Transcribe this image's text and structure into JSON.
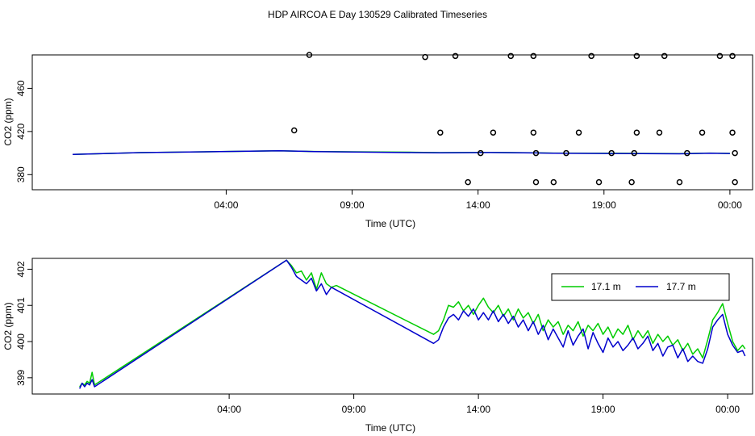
{
  "title": "HDP AIRCOA E  Day 130529  Calibrated Timeseries",
  "chart_data": [
    {
      "type": "line",
      "xlabel": "Time (UTC)",
      "ylabel": "CO2 (ppm)",
      "xticks": [
        "04:00",
        "09:00",
        "14:00",
        "19:00",
        "00:00"
      ],
      "yticks": [
        380,
        420,
        460
      ],
      "xlim": [
        -3.7,
        24.9
      ],
      "ylim": [
        366,
        491
      ],
      "series": [
        {
          "color": "#00cc00",
          "points": [
            [
              -2.1,
              398.8
            ],
            [
              0.6,
              400.4
            ],
            [
              6.1,
              402.1
            ],
            [
              7.5,
              401.5
            ],
            [
              9.0,
              401.2
            ],
            [
              11.5,
              400.7
            ],
            [
              12.5,
              400.4
            ],
            [
              14.5,
              400.6
            ],
            [
              16.2,
              400.2
            ],
            [
              17.0,
              400.0
            ],
            [
              18.5,
              399.8
            ],
            [
              19.5,
              399.8
            ],
            [
              20.5,
              399.7
            ],
            [
              22.0,
              399.5
            ],
            [
              23.2,
              400.0
            ],
            [
              24.0,
              399.7
            ]
          ]
        },
        {
          "color": "#0000cc",
          "points": [
            [
              -2.1,
              398.8
            ],
            [
              0.6,
              400.4
            ],
            [
              6.1,
              402.1
            ],
            [
              7.5,
              401.4
            ],
            [
              9.0,
              401.0
            ],
            [
              11.5,
              400.4
            ],
            [
              12.5,
              400.3
            ],
            [
              14.5,
              400.5
            ],
            [
              16.2,
              400.1
            ],
            [
              17.0,
              399.9
            ],
            [
              18.5,
              399.7
            ],
            [
              19.5,
              399.6
            ],
            [
              20.5,
              399.5
            ],
            [
              22.0,
              399.3
            ],
            [
              23.2,
              399.9
            ],
            [
              24.0,
              399.6
            ]
          ]
        }
      ],
      "markers": [
        [
          7.3,
          491
        ],
        [
          6.7,
          421
        ],
        [
          11.9,
          489
        ],
        [
          13.1,
          490
        ],
        [
          15.3,
          490
        ],
        [
          16.2,
          490
        ],
        [
          18.5,
          490
        ],
        [
          20.3,
          490
        ],
        [
          21.4,
          490
        ],
        [
          23.6,
          490
        ],
        [
          24.1,
          490
        ],
        [
          12.5,
          419
        ],
        [
          14.6,
          419
        ],
        [
          16.2,
          419
        ],
        [
          18.0,
          419
        ],
        [
          20.3,
          419
        ],
        [
          21.2,
          419
        ],
        [
          22.9,
          419
        ],
        [
          24.1,
          419
        ],
        [
          14.1,
          400
        ],
        [
          16.3,
          400
        ],
        [
          17.5,
          400
        ],
        [
          19.3,
          400
        ],
        [
          20.2,
          400
        ],
        [
          22.3,
          400
        ],
        [
          24.2,
          400
        ],
        [
          13.6,
          373
        ],
        [
          16.3,
          373
        ],
        [
          17.0,
          373
        ],
        [
          18.8,
          373
        ],
        [
          20.1,
          373
        ],
        [
          22.0,
          373
        ],
        [
          24.2,
          373
        ]
      ]
    },
    {
      "type": "line",
      "xlabel": "Time (UTC)",
      "ylabel": "CO2 (ppm)",
      "xticks": [
        "04:00",
        "09:00",
        "14:00",
        "19:00",
        "00:00"
      ],
      "yticks": [
        399,
        400,
        401,
        402
      ],
      "xlim": [
        -3.9,
        25.0
      ],
      "ylim": [
        398.55,
        402.3
      ],
      "legend": {
        "position": "top-right",
        "entries": [
          "17.1 m",
          "17.7 m"
        ]
      },
      "series": [
        {
          "name": "17.1 m",
          "color": "#00cc00",
          "points": [
            [
              -2.0,
              398.75
            ],
            [
              -1.9,
              398.85
            ],
            [
              -1.8,
              398.8
            ],
            [
              -1.7,
              398.9
            ],
            [
              -1.6,
              398.85
            ],
            [
              -1.5,
              399.15
            ],
            [
              -1.4,
              398.8
            ],
            [
              6.3,
              402.25
            ],
            [
              6.5,
              402.1
            ],
            [
              6.7,
              401.9
            ],
            [
              6.9,
              401.95
            ],
            [
              7.1,
              401.7
            ],
            [
              7.3,
              401.9
            ],
            [
              7.5,
              401.45
            ],
            [
              7.7,
              401.9
            ],
            [
              7.9,
              401.6
            ],
            [
              8.1,
              401.5
            ],
            [
              8.3,
              401.55
            ],
            [
              12.2,
              400.2
            ],
            [
              12.4,
              400.3
            ],
            [
              12.6,
              400.6
            ],
            [
              12.8,
              401.0
            ],
            [
              13.0,
              400.95
            ],
            [
              13.2,
              401.1
            ],
            [
              13.4,
              400.85
            ],
            [
              13.6,
              401.0
            ],
            [
              13.8,
              400.75
            ],
            [
              14.0,
              401.0
            ],
            [
              14.2,
              401.2
            ],
            [
              14.4,
              400.95
            ],
            [
              14.6,
              400.8
            ],
            [
              14.8,
              401.0
            ],
            [
              15.0,
              400.7
            ],
            [
              15.2,
              400.9
            ],
            [
              15.4,
              400.6
            ],
            [
              15.6,
              400.9
            ],
            [
              15.8,
              400.65
            ],
            [
              16.0,
              400.8
            ],
            [
              16.2,
              400.5
            ],
            [
              16.4,
              400.75
            ],
            [
              16.6,
              400.3
            ],
            [
              16.8,
              400.6
            ],
            [
              17.0,
              400.4
            ],
            [
              17.2,
              400.55
            ],
            [
              17.4,
              400.2
            ],
            [
              17.6,
              400.45
            ],
            [
              17.8,
              400.3
            ],
            [
              18.0,
              400.55
            ],
            [
              18.2,
              400.15
            ],
            [
              18.4,
              400.45
            ],
            [
              18.6,
              400.3
            ],
            [
              18.8,
              400.5
            ],
            [
              19.0,
              400.2
            ],
            [
              19.2,
              400.4
            ],
            [
              19.4,
              400.1
            ],
            [
              19.6,
              400.35
            ],
            [
              19.8,
              400.2
            ],
            [
              20.0,
              400.45
            ],
            [
              20.2,
              400.05
            ],
            [
              20.4,
              400.3
            ],
            [
              20.6,
              400.1
            ],
            [
              20.8,
              400.3
            ],
            [
              21.0,
              399.95
            ],
            [
              21.2,
              400.2
            ],
            [
              21.4,
              400.0
            ],
            [
              21.6,
              400.15
            ],
            [
              21.8,
              399.9
            ],
            [
              22.0,
              400.05
            ],
            [
              22.2,
              399.75
            ],
            [
              22.4,
              399.95
            ],
            [
              22.6,
              399.65
            ],
            [
              22.8,
              399.8
            ],
            [
              23.0,
              399.55
            ],
            [
              23.2,
              400.05
            ],
            [
              23.4,
              400.6
            ],
            [
              23.6,
              400.8
            ],
            [
              23.8,
              401.05
            ],
            [
              24.0,
              400.5
            ],
            [
              24.2,
              400.0
            ],
            [
              24.4,
              399.75
            ],
            [
              24.6,
              399.9
            ],
            [
              24.7,
              399.8
            ]
          ]
        },
        {
          "name": "17.7 m",
          "color": "#0000cc",
          "points": [
            [
              -2.0,
              398.7
            ],
            [
              -1.9,
              398.85
            ],
            [
              -1.8,
              398.75
            ],
            [
              -1.7,
              398.85
            ],
            [
              -1.6,
              398.8
            ],
            [
              -1.5,
              398.95
            ],
            [
              -1.4,
              398.75
            ],
            [
              6.3,
              402.25
            ],
            [
              6.5,
              402.05
            ],
            [
              6.7,
              401.8
            ],
            [
              6.9,
              401.7
            ],
            [
              7.1,
              401.6
            ],
            [
              7.3,
              401.75
            ],
            [
              7.5,
              401.4
            ],
            [
              7.7,
              401.6
            ],
            [
              7.9,
              401.3
            ],
            [
              8.1,
              401.5
            ],
            [
              12.2,
              399.95
            ],
            [
              12.4,
              400.05
            ],
            [
              12.6,
              400.4
            ],
            [
              12.8,
              400.65
            ],
            [
              13.0,
              400.75
            ],
            [
              13.2,
              400.6
            ],
            [
              13.4,
              400.85
            ],
            [
              13.6,
              400.7
            ],
            [
              13.8,
              400.9
            ],
            [
              14.0,
              400.6
            ],
            [
              14.2,
              400.8
            ],
            [
              14.4,
              400.6
            ],
            [
              14.6,
              400.85
            ],
            [
              14.8,
              400.55
            ],
            [
              15.0,
              400.75
            ],
            [
              15.2,
              400.5
            ],
            [
              15.4,
              400.7
            ],
            [
              15.6,
              400.4
            ],
            [
              15.8,
              400.6
            ],
            [
              16.0,
              400.3
            ],
            [
              16.2,
              400.55
            ],
            [
              16.4,
              400.2
            ],
            [
              16.6,
              400.45
            ],
            [
              16.8,
              400.05
            ],
            [
              17.0,
              400.35
            ],
            [
              17.2,
              400.1
            ],
            [
              17.4,
              399.85
            ],
            [
              17.6,
              400.3
            ],
            [
              17.8,
              399.9
            ],
            [
              18.0,
              400.15
            ],
            [
              18.2,
              400.35
            ],
            [
              18.4,
              399.8
            ],
            [
              18.6,
              400.25
            ],
            [
              18.8,
              399.95
            ],
            [
              19.0,
              399.7
            ],
            [
              19.2,
              400.1
            ],
            [
              19.4,
              399.85
            ],
            [
              19.6,
              400.0
            ],
            [
              19.8,
              399.75
            ],
            [
              20.0,
              399.9
            ],
            [
              20.2,
              400.1
            ],
            [
              20.4,
              399.8
            ],
            [
              20.6,
              399.95
            ],
            [
              20.8,
              400.15
            ],
            [
              21.0,
              399.75
            ],
            [
              21.2,
              399.95
            ],
            [
              21.4,
              399.6
            ],
            [
              21.6,
              399.85
            ],
            [
              21.8,
              399.9
            ],
            [
              22.0,
              399.55
            ],
            [
              22.2,
              399.8
            ],
            [
              22.4,
              399.45
            ],
            [
              22.6,
              399.6
            ],
            [
              22.8,
              399.45
            ],
            [
              23.0,
              399.4
            ],
            [
              23.2,
              399.8
            ],
            [
              23.4,
              400.4
            ],
            [
              23.6,
              400.6
            ],
            [
              23.8,
              400.75
            ],
            [
              24.0,
              400.2
            ],
            [
              24.2,
              399.9
            ],
            [
              24.4,
              399.7
            ],
            [
              24.6,
              399.75
            ],
            [
              24.7,
              399.6
            ]
          ]
        }
      ]
    }
  ]
}
